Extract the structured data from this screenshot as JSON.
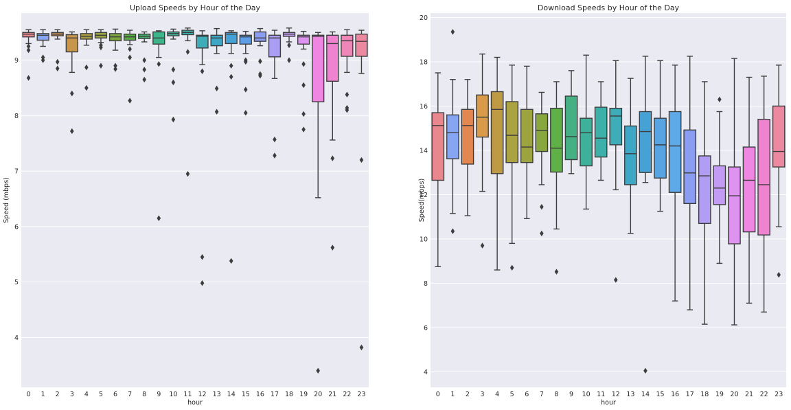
{
  "chart_data": [
    {
      "type": "box",
      "title": "Upload Speeds by Hour of the Day",
      "xlabel": "hour",
      "ylabel": "Speed (mbps)",
      "ylim": [
        3.1,
        9.85
      ],
      "yticks": [
        4,
        5,
        6,
        7,
        8,
        9
      ],
      "grid": true,
      "categories": [
        "0",
        "1",
        "2",
        "3",
        "4",
        "5",
        "6",
        "7",
        "8",
        "9",
        "10",
        "11",
        "12",
        "13",
        "14",
        "15",
        "16",
        "17",
        "18",
        "19",
        "20",
        "21",
        "22",
        "23"
      ],
      "colors": [
        "#e8878e",
        "#86a5f2",
        "#c48b59",
        "#c8964a",
        "#a89d45",
        "#98a53e",
        "#7da53e",
        "#56ac43",
        "#43b06a",
        "#3db58b",
        "#3fb19b",
        "#3eb0aa",
        "#3eadb8",
        "#3fa7c6",
        "#46a1d5",
        "#5e9de8",
        "#8b9cf3",
        "#a99ef3",
        "#c49bf4",
        "#df93f1",
        "#ee86e2",
        "#f083d0",
        "#ee87b7",
        "#ec89a1"
      ],
      "boxes": [
        {
          "whislo": 9.3,
          "q1": 9.42,
          "med": 9.47,
          "q3": 9.5,
          "whishi": 9.55,
          "fliers": [
            9.25,
            9.18,
            8.68
          ]
        },
        {
          "whislo": 9.25,
          "q1": 9.36,
          "med": 9.45,
          "q3": 9.48,
          "whishi": 9.55,
          "fliers": [
            9.05,
            9.0
          ]
        },
        {
          "whislo": 9.38,
          "q1": 9.44,
          "med": 9.47,
          "q3": 9.5,
          "whishi": 9.55,
          "fliers": [
            8.97,
            8.85
          ]
        },
        {
          "whislo": 8.78,
          "q1": 9.15,
          "med": 9.4,
          "q3": 9.46,
          "whishi": 9.51,
          "fliers": [
            8.4,
            7.72
          ]
        },
        {
          "whislo": 9.27,
          "q1": 9.38,
          "med": 9.43,
          "q3": 9.48,
          "whishi": 9.55,
          "fliers": [
            8.87,
            8.5
          ]
        },
        {
          "whislo": 9.32,
          "q1": 9.4,
          "med": 9.45,
          "q3": 9.5,
          "whishi": 9.55,
          "fliers": [
            9.27,
            9.23,
            8.9
          ]
        },
        {
          "whislo": 9.18,
          "q1": 9.35,
          "med": 9.42,
          "q3": 9.48,
          "whishi": 9.56,
          "fliers": [
            8.9,
            8.84
          ]
        },
        {
          "whislo": 9.28,
          "q1": 9.36,
          "med": 9.42,
          "q3": 9.47,
          "whishi": 9.54,
          "fliers": [
            9.2,
            9.05,
            8.27
          ]
        },
        {
          "whislo": 9.33,
          "q1": 9.39,
          "med": 9.43,
          "q3": 9.47,
          "whishi": 9.51,
          "fliers": [
            9.0,
            8.83,
            8.65
          ]
        },
        {
          "whislo": 9.05,
          "q1": 9.29,
          "med": 9.4,
          "q3": 9.51,
          "whishi": 9.53,
          "fliers": [
            8.93,
            6.15
          ]
        },
        {
          "whislo": 9.38,
          "q1": 9.44,
          "med": 9.48,
          "q3": 9.51,
          "whishi": 9.56,
          "fliers": [
            8.83,
            8.6,
            7.93
          ]
        },
        {
          "whislo": 9.35,
          "q1": 9.46,
          "med": 9.5,
          "q3": 9.54,
          "whishi": 9.58,
          "fliers": [
            9.15,
            6.95
          ]
        },
        {
          "whislo": 8.92,
          "q1": 9.22,
          "med": 9.43,
          "q3": 9.45,
          "whishi": 9.53,
          "fliers": [
            8.8,
            5.45,
            4.98
          ]
        },
        {
          "whislo": 9.12,
          "q1": 9.26,
          "med": 9.4,
          "q3": 9.45,
          "whishi": 9.57,
          "fliers": [
            8.49,
            8.07
          ]
        },
        {
          "whislo": 9.12,
          "q1": 9.3,
          "med": 9.47,
          "q3": 9.5,
          "whishi": 9.53,
          "fliers": [
            8.9,
            8.7,
            5.38
          ]
        },
        {
          "whislo": 9.12,
          "q1": 9.29,
          "med": 9.42,
          "q3": 9.45,
          "whishi": 9.52,
          "fliers": [
            9.0,
            8.97,
            8.47,
            8.05
          ]
        },
        {
          "whislo": 9.26,
          "q1": 9.34,
          "med": 9.4,
          "q3": 9.51,
          "whishi": 9.57,
          "fliers": [
            8.98,
            8.75,
            8.72
          ]
        },
        {
          "whislo": 8.67,
          "q1": 9.06,
          "med": 9.4,
          "q3": 9.45,
          "whishi": 9.54,
          "fliers": [
            7.57,
            7.28
          ]
        },
        {
          "whislo": 9.33,
          "q1": 9.43,
          "med": 9.47,
          "q3": 9.5,
          "whishi": 9.58,
          "fliers": [
            9.27,
            9.0
          ]
        },
        {
          "whislo": 9.2,
          "q1": 9.29,
          "med": 9.42,
          "q3": 9.45,
          "whishi": 9.52,
          "fliers": [
            8.93,
            8.55,
            8.03,
            7.75
          ]
        },
        {
          "whislo": 6.52,
          "q1": 8.25,
          "med": 9.43,
          "q3": 9.45,
          "whishi": 9.5,
          "fliers": [
            3.4
          ]
        },
        {
          "whislo": 7.56,
          "q1": 8.62,
          "med": 9.3,
          "q3": 9.45,
          "whishi": 9.51,
          "fliers": [
            7.23,
            5.62
          ]
        },
        {
          "whislo": 8.78,
          "q1": 9.07,
          "med": 9.35,
          "q3": 9.45,
          "whishi": 9.55,
          "fliers": [
            8.38,
            8.14,
            8.1
          ]
        },
        {
          "whislo": 8.76,
          "q1": 9.07,
          "med": 9.34,
          "q3": 9.47,
          "whishi": 9.54,
          "fliers": [
            7.2,
            3.82
          ]
        }
      ]
    },
    {
      "type": "box",
      "title": "Download Speeds by Hour of the Day",
      "xlabel": "hour",
      "ylabel": "Speed(mbps)",
      "ylim": [
        3.3,
        20.2
      ],
      "yticks": [
        4,
        6,
        8,
        10,
        12,
        14,
        16,
        18,
        20
      ],
      "grid": true,
      "categories": [
        "0",
        "1",
        "2",
        "3",
        "4",
        "5",
        "6",
        "7",
        "8",
        "9",
        "10",
        "11",
        "12",
        "13",
        "14",
        "15",
        "16",
        "17",
        "18",
        "19",
        "20",
        "21",
        "22",
        "23"
      ],
      "colors": [
        "#e8878e",
        "#86a5f2",
        "#e1874f",
        "#d99b4a",
        "#bf9a45",
        "#aba342",
        "#9da43f",
        "#88a83e",
        "#5fb047",
        "#45b083",
        "#3fb19b",
        "#3eb0aa",
        "#3eadb8",
        "#3fa7c6",
        "#46a1d5",
        "#58a3e2",
        "#5ea9e8",
        "#8b9cf3",
        "#b19ef4",
        "#c49bf4",
        "#df93f1",
        "#ee86e2",
        "#f083d0",
        "#ec89a1"
      ],
      "boxes": [
        {
          "whislo": 8.75,
          "q1": 12.65,
          "med": 15.12,
          "q3": 15.7,
          "whishi": 17.5,
          "fliers": []
        },
        {
          "whislo": 11.15,
          "q1": 13.62,
          "med": 14.8,
          "q3": 15.6,
          "whishi": 17.2,
          "fliers": [
            19.35,
            10.35
          ]
        },
        {
          "whislo": 11.05,
          "q1": 13.38,
          "med": 15.12,
          "q3": 15.85,
          "whishi": 17.2,
          "fliers": []
        },
        {
          "whislo": 12.15,
          "q1": 14.6,
          "med": 15.5,
          "q3": 16.5,
          "whishi": 18.35,
          "fliers": [
            9.7
          ]
        },
        {
          "whislo": 8.6,
          "q1": 12.95,
          "med": 15.85,
          "q3": 16.65,
          "whishi": 18.2,
          "fliers": []
        },
        {
          "whislo": 9.8,
          "q1": 13.45,
          "med": 14.68,
          "q3": 16.2,
          "whishi": 17.85,
          "fliers": [
            8.7
          ]
        },
        {
          "whislo": 10.92,
          "q1": 13.45,
          "med": 14.15,
          "q3": 15.85,
          "whishi": 17.8,
          "fliers": []
        },
        {
          "whislo": 12.45,
          "q1": 13.95,
          "med": 14.9,
          "q3": 15.65,
          "whishi": 16.62,
          "fliers": [
            11.45,
            10.25
          ]
        },
        {
          "whislo": 10.45,
          "q1": 13.02,
          "med": 14.1,
          "q3": 15.9,
          "whishi": 17.1,
          "fliers": [
            8.52
          ]
        },
        {
          "whislo": 12.95,
          "q1": 13.58,
          "med": 14.62,
          "q3": 16.45,
          "whishi": 17.6,
          "fliers": []
        },
        {
          "whislo": 11.35,
          "q1": 13.3,
          "med": 14.8,
          "q3": 15.45,
          "whishi": 18.3,
          "fliers": []
        },
        {
          "whislo": 12.65,
          "q1": 13.7,
          "med": 14.55,
          "q3": 15.95,
          "whishi": 17.1,
          "fliers": []
        },
        {
          "whislo": 12.22,
          "q1": 14.25,
          "med": 15.55,
          "q3": 15.9,
          "whishi": 18.05,
          "fliers": [
            8.15
          ]
        },
        {
          "whislo": 10.25,
          "q1": 12.45,
          "med": 13.85,
          "q3": 15.1,
          "whishi": 17.25,
          "fliers": []
        },
        {
          "whislo": 12.55,
          "q1": 13.0,
          "med": 14.85,
          "q3": 15.75,
          "whishi": 18.25,
          "fliers": [
            4.05
          ]
        },
        {
          "whislo": 11.25,
          "q1": 12.75,
          "med": 14.25,
          "q3": 15.45,
          "whishi": 18.05,
          "fliers": []
        },
        {
          "whislo": 7.2,
          "q1": 12.1,
          "med": 14.2,
          "q3": 15.75,
          "whishi": 17.85,
          "fliers": []
        },
        {
          "whislo": 6.8,
          "q1": 11.6,
          "med": 12.98,
          "q3": 14.92,
          "whishi": 18.25,
          "fliers": []
        },
        {
          "whislo": 6.15,
          "q1": 10.7,
          "med": 12.85,
          "q3": 13.75,
          "whishi": 17.1,
          "fliers": []
        },
        {
          "whislo": 8.9,
          "q1": 11.55,
          "med": 12.3,
          "q3": 13.3,
          "whishi": 15.75,
          "fliers": [
            16.3
          ]
        },
        {
          "whislo": 6.12,
          "q1": 9.78,
          "med": 11.95,
          "q3": 13.25,
          "whishi": 18.15,
          "fliers": []
        },
        {
          "whislo": 7.1,
          "q1": 10.32,
          "med": 12.65,
          "q3": 14.15,
          "whishi": 17.3,
          "fliers": []
        },
        {
          "whislo": 6.7,
          "q1": 10.18,
          "med": 12.45,
          "q3": 15.4,
          "whishi": 17.35,
          "fliers": []
        },
        {
          "whislo": 10.55,
          "q1": 13.25,
          "med": 13.95,
          "q3": 16.0,
          "whishi": 17.85,
          "fliers": [
            8.38
          ]
        }
      ]
    }
  ]
}
